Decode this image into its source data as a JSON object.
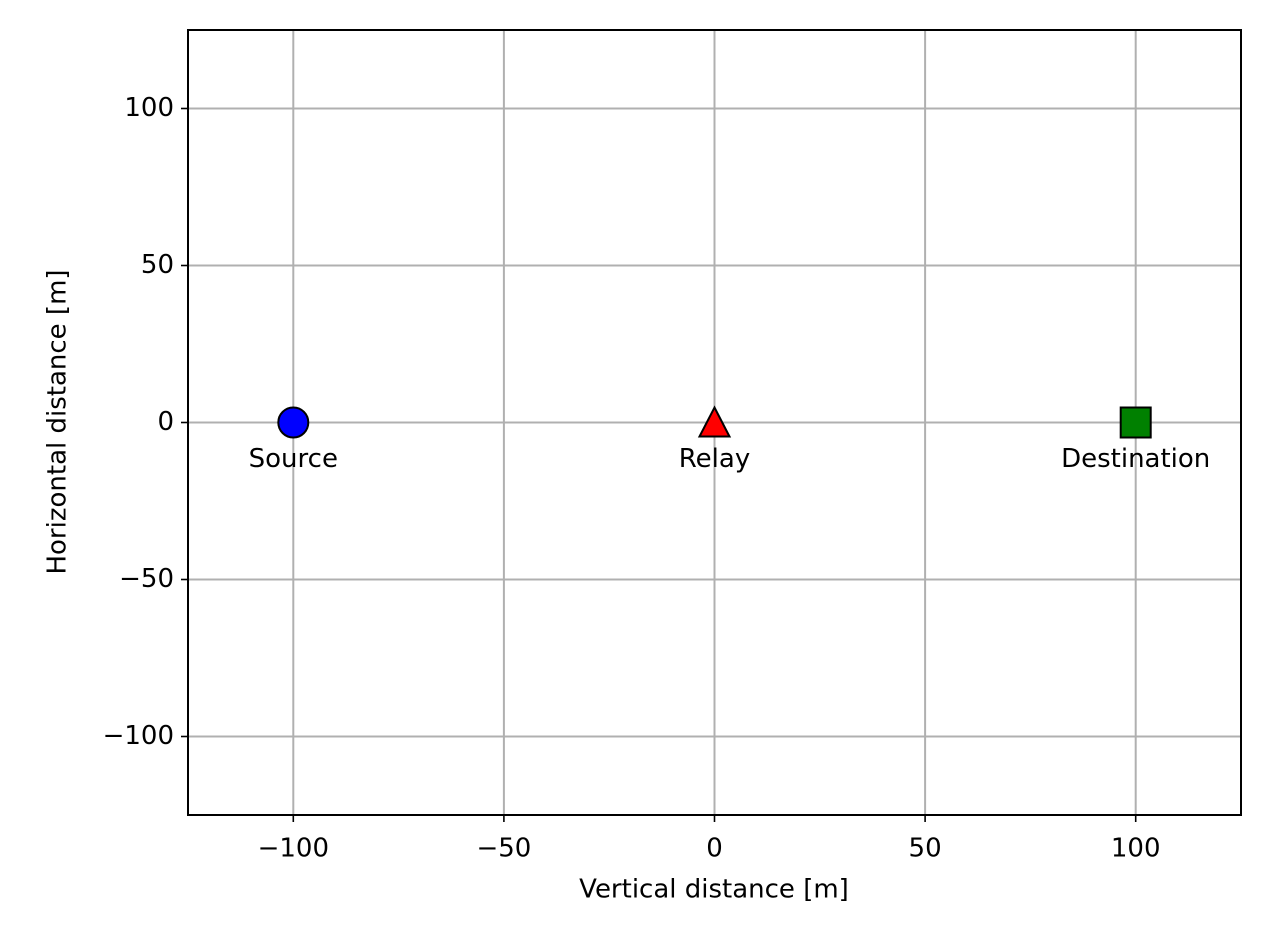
{
  "chart_data": {
    "type": "scatter",
    "xlabel": "Vertical distance [m]",
    "ylabel": "Horizontal distance [m]",
    "xlim": [
      -125,
      125
    ],
    "ylim": [
      -125,
      125
    ],
    "xticks": [
      {
        "value": -100,
        "label": "−100"
      },
      {
        "value": -50,
        "label": "−50"
      },
      0,
      50,
      100
    ],
    "yticks": [
      {
        "value": -100,
        "label": "−100"
      },
      {
        "value": -50,
        "label": "−50"
      },
      0,
      50,
      100
    ],
    "grid": true,
    "series": [
      {
        "name": "Source",
        "color": "#0000ff",
        "marker": "circle",
        "x": [
          -100
        ],
        "values": [
          0
        ]
      },
      {
        "name": "Relay",
        "color": "#ff0000",
        "marker": "triangle",
        "x": [
          0
        ],
        "values": [
          0
        ]
      },
      {
        "name": "Destination",
        "color": "#008000",
        "marker": "square",
        "x": [
          100
        ],
        "values": [
          0
        ]
      }
    ]
  }
}
